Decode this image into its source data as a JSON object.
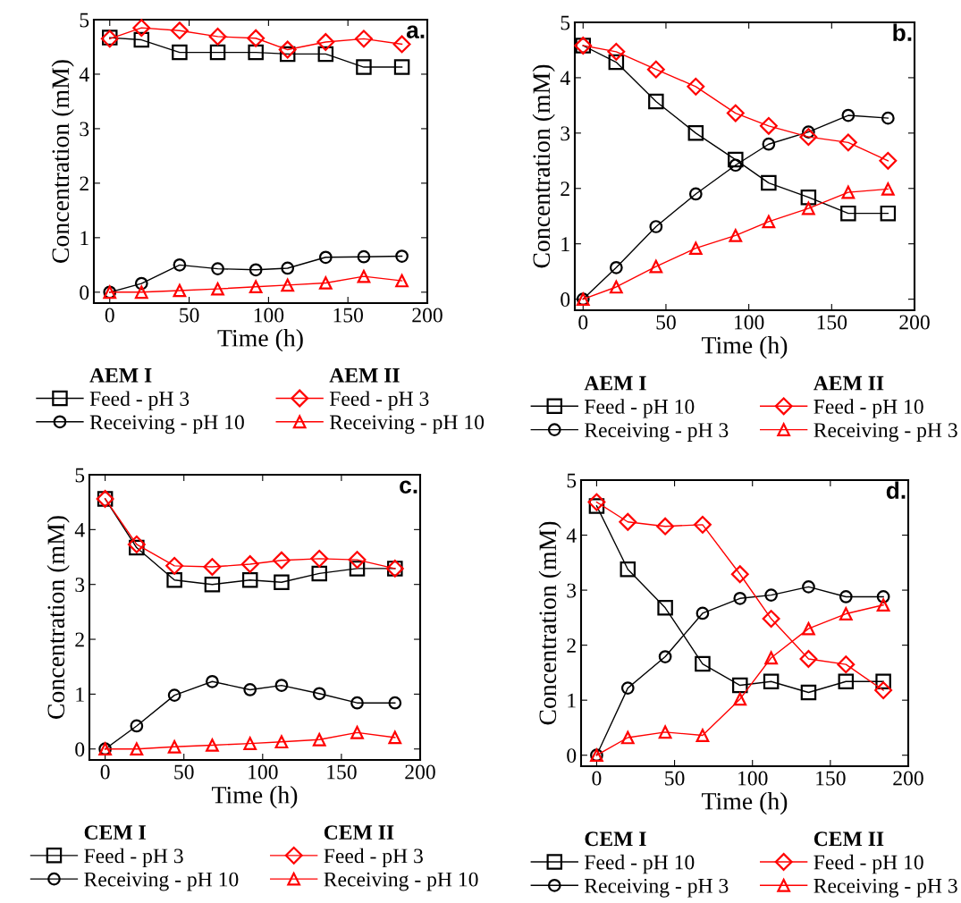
{
  "chart_data": [
    {
      "type": "line",
      "xlabel": "Time (h)",
      "ylabel": "Concentration (mM)",
      "annotations": [
        "a.",
        "AEM I",
        "AEM II"
      ],
      "xlim": [
        -10,
        200
      ],
      "ylim": [
        -0.2,
        5
      ],
      "xticks": [
        0,
        50,
        100,
        150,
        200
      ],
      "yticks": [
        0,
        1,
        2,
        3,
        4,
        5
      ],
      "legend": "bottom",
      "grid": false,
      "x": [
        0,
        20,
        44,
        68,
        92,
        112,
        136,
        160,
        184
      ],
      "series": [
        {
          "name": "Feed - pH 3",
          "color": "#000000",
          "marker": "square",
          "values": [
            4.67,
            4.63,
            4.4,
            4.4,
            4.4,
            4.37,
            4.37,
            4.13,
            4.13
          ]
        },
        {
          "name": "Receiving - pH 10",
          "color": "#000000",
          "marker": "circle",
          "values": [
            0,
            0.16,
            0.5,
            0.43,
            0.41,
            0.44,
            0.64,
            0.65,
            0.66
          ]
        },
        {
          "name": "Feed - pH 3",
          "color": "#ff0000",
          "marker": "diamond",
          "values": [
            4.65,
            4.85,
            4.8,
            4.69,
            4.66,
            4.45,
            4.59,
            4.65,
            4.55
          ]
        },
        {
          "name": "Receiving - pH 10",
          "color": "#ff0000",
          "marker": "triangle",
          "values": [
            0,
            0,
            0.03,
            0.06,
            0.1,
            0.13,
            0.17,
            0.29,
            0.21
          ]
        }
      ]
    },
    {
      "type": "line",
      "xlabel": "Time (h)",
      "ylabel": "Concentration (mM)",
      "annotations": [
        "b.",
        "AEM I",
        "AEM II"
      ],
      "xlim": [
        -5,
        200
      ],
      "ylim": [
        -0.2,
        5
      ],
      "xticks": [
        0,
        50,
        100,
        150,
        200
      ],
      "yticks": [
        0,
        1,
        2,
        3,
        4,
        5
      ],
      "legend": "bottom",
      "grid": false,
      "x": [
        0,
        20,
        44,
        68,
        92,
        112,
        136,
        160,
        184
      ],
      "series": [
        {
          "name": "Feed - pH 10",
          "color": "#000000",
          "marker": "square",
          "values": [
            4.58,
            4.28,
            3.57,
            3.0,
            2.52,
            2.1,
            1.84,
            1.55,
            1.55
          ]
        },
        {
          "name": "Receiving - pH 3",
          "color": "#000000",
          "marker": "circle",
          "values": [
            0,
            0.57,
            1.31,
            1.9,
            2.42,
            2.8,
            3.02,
            3.32,
            3.27
          ]
        },
        {
          "name": "Feed - pH 10",
          "color": "#ff0000",
          "marker": "diamond",
          "values": [
            4.58,
            4.47,
            4.15,
            3.84,
            3.36,
            3.13,
            2.93,
            2.83,
            2.5
          ]
        },
        {
          "name": "Receiving - pH 3",
          "color": "#ff0000",
          "marker": "triangle",
          "values": [
            0,
            0.22,
            0.59,
            0.92,
            1.15,
            1.4,
            1.64,
            1.93,
            1.99
          ]
        }
      ]
    },
    {
      "type": "line",
      "xlabel": "Time (h)",
      "ylabel": "Concentration (mM)",
      "annotations": [
        "c.",
        "CEM I",
        "CEM II"
      ],
      "xlim": [
        -10,
        200
      ],
      "ylim": [
        -0.2,
        5
      ],
      "xticks": [
        0,
        50,
        100,
        150,
        200
      ],
      "yticks": [
        0,
        1,
        2,
        3,
        4,
        5
      ],
      "legend": "bottom",
      "grid": false,
      "x": [
        0,
        20,
        44,
        68,
        92,
        112,
        136,
        160,
        184
      ],
      "series": [
        {
          "name": "Feed - pH 3",
          "color": "#000000",
          "marker": "square",
          "values": [
            4.56,
            3.67,
            3.08,
            3.0,
            3.08,
            3.04,
            3.2,
            3.29,
            3.29
          ]
        },
        {
          "name": "Receiving - pH 10",
          "color": "#000000",
          "marker": "circle",
          "values": [
            0,
            0.42,
            0.98,
            1.23,
            1.08,
            1.16,
            1.01,
            0.84,
            0.84
          ]
        },
        {
          "name": "Feed - pH 3",
          "color": "#ff0000",
          "marker": "diamond",
          "values": [
            4.56,
            3.73,
            3.34,
            3.32,
            3.37,
            3.44,
            3.47,
            3.45,
            3.29
          ]
        },
        {
          "name": "Receiving - pH 10",
          "color": "#ff0000",
          "marker": "triangle",
          "values": [
            0,
            0,
            0.04,
            0.07,
            0.1,
            0.13,
            0.17,
            0.3,
            0.21
          ]
        }
      ]
    },
    {
      "type": "line",
      "xlabel": "Time (h)",
      "ylabel": "Concentration (mM)",
      "annotations": [
        "d.",
        "CEM I",
        "CEM II"
      ],
      "xlim": [
        -10,
        200
      ],
      "ylim": [
        -0.2,
        5
      ],
      "xticks": [
        0,
        50,
        100,
        150,
        200
      ],
      "yticks": [
        0,
        1,
        2,
        3,
        4,
        5
      ],
      "legend": "bottom",
      "grid": false,
      "x": [
        0,
        20,
        44,
        68,
        92,
        112,
        136,
        160,
        184
      ],
      "series": [
        {
          "name": "Feed - pH 10",
          "color": "#000000",
          "marker": "square",
          "values": [
            4.53,
            3.38,
            2.68,
            1.66,
            1.27,
            1.34,
            1.14,
            1.34,
            1.34
          ]
        },
        {
          "name": "Receiving - pH 3",
          "color": "#000000",
          "marker": "circle",
          "values": [
            0,
            1.22,
            1.79,
            2.58,
            2.85,
            2.91,
            3.06,
            2.88,
            2.88
          ]
        },
        {
          "name": "Feed - pH 10",
          "color": "#ff0000",
          "marker": "diamond",
          "values": [
            4.6,
            4.24,
            4.16,
            4.19,
            3.29,
            2.48,
            1.75,
            1.65,
            1.18
          ]
        },
        {
          "name": "Receiving - pH 3",
          "color": "#ff0000",
          "marker": "triangle",
          "values": [
            0,
            0.32,
            0.42,
            0.36,
            1.02,
            1.77,
            2.3,
            2.57,
            2.73
          ]
        }
      ]
    }
  ]
}
